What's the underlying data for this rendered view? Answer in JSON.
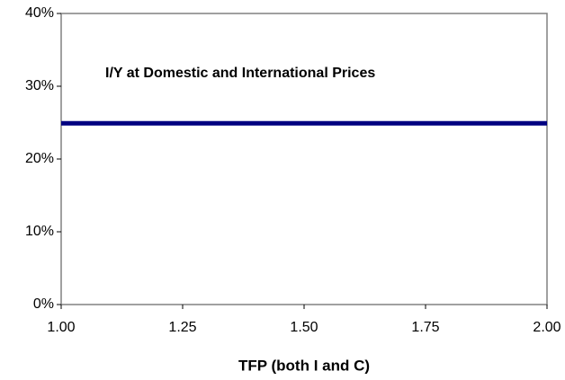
{
  "chart_data": {
    "type": "line",
    "xlabel": "TFP (both I and C)",
    "x": [
      1.0,
      2.0
    ],
    "series": [
      {
        "name": "I/Y at Domestic and International Prices",
        "color": "#000080",
        "values": [
          24.9,
          24.9
        ]
      }
    ],
    "xlim": [
      1.0,
      2.0
    ],
    "xticks": [
      {
        "value": 1.0,
        "label": "1.00"
      },
      {
        "value": 1.25,
        "label": "1.25"
      },
      {
        "value": 1.5,
        "label": "1.50"
      },
      {
        "value": 1.75,
        "label": "1.75"
      },
      {
        "value": 2.0,
        "label": "2.00"
      }
    ],
    "ylim": [
      0,
      40
    ],
    "yticks": [
      {
        "value": 0,
        "label": "0%"
      },
      {
        "value": 10,
        "label": "10%"
      },
      {
        "value": 20,
        "label": "20%"
      },
      {
        "value": 30,
        "label": "30%"
      },
      {
        "value": 40,
        "label": "40%"
      }
    ],
    "grid": false
  }
}
